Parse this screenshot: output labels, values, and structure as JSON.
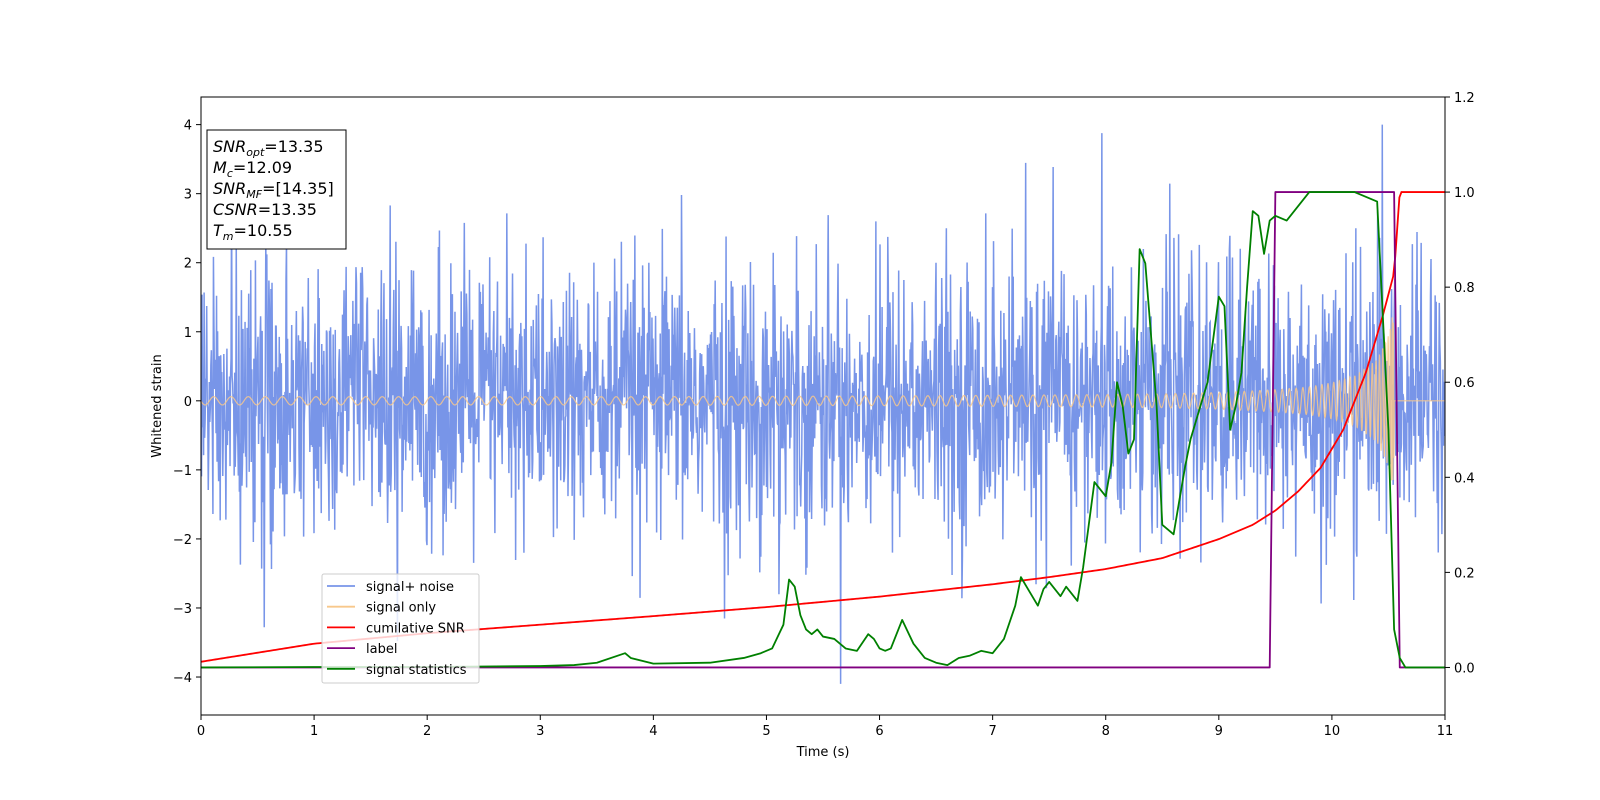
{
  "chart_data": {
    "type": "line",
    "xlabel": "Time (s)",
    "ylabel": "Whitened strain",
    "xlim": [
      0,
      11
    ],
    "ylim": [
      -4.55,
      4.4
    ],
    "y2lim": [
      -0.1,
      1.2
    ],
    "xticks": [
      "0",
      "1",
      "2",
      "3",
      "4",
      "5",
      "6",
      "7",
      "8",
      "9",
      "10",
      "11"
    ],
    "yticks": [
      "−4",
      "−3",
      "−2",
      "−1",
      "0",
      "1",
      "2",
      "3",
      "4"
    ],
    "y2ticks": [
      "0.0",
      "0.2",
      "0.4",
      "0.6",
      "0.8",
      "1.0",
      "1.2"
    ],
    "legend_position": "lower-left",
    "annotation": [
      {
        "sym": "SNR",
        "sub": "opt",
        "value": "=13.35"
      },
      {
        "sym": "M",
        "sub": "c",
        "value": "=12.09"
      },
      {
        "sym": "SNR",
        "sub": "MF",
        "value": "=[14.35]"
      },
      {
        "sym": "CSNR",
        "sub": "",
        "value": "=13.35"
      },
      {
        "sym": "T",
        "sub": "m",
        "value": "=10.55"
      }
    ],
    "series": [
      {
        "name": "signal+ noise",
        "color": "#7895e8",
        "axis": "left",
        "noise_std": 1.0,
        "min": -4.1,
        "max": 4.0,
        "x_range": [
          0,
          11
        ]
      },
      {
        "name": "signal only",
        "color": "#f8c88b",
        "axis": "left",
        "merger_time": 10.55,
        "amplitude_envelope": {
          "x": [
            0,
            2,
            4,
            6,
            7,
            8,
            8.5,
            9,
            9.5,
            9.8,
            10.0,
            10.2,
            10.4,
            10.5,
            10.55
          ],
          "y": [
            0.06,
            0.06,
            0.06,
            0.07,
            0.08,
            0.09,
            0.1,
            0.12,
            0.16,
            0.2,
            0.26,
            0.36,
            0.6,
            0.95,
            1.35
          ]
        }
      },
      {
        "name": "cumilative SNR",
        "color": "#ff0000",
        "axis": "right",
        "x": [
          0,
          1,
          2,
          3,
          4,
          5,
          6,
          7,
          7.5,
          8,
          8.5,
          9,
          9.3,
          9.5,
          9.7,
          9.9,
          10.1,
          10.3,
          10.45,
          10.55,
          10.6,
          11
        ],
        "y": [
          0.012,
          0.05,
          0.072,
          0.09,
          0.108,
          0.127,
          0.149,
          0.175,
          0.19,
          0.207,
          0.23,
          0.27,
          0.3,
          0.33,
          0.37,
          0.42,
          0.5,
          0.62,
          0.74,
          0.83,
          1.0,
          1.0
        ]
      },
      {
        "name": "label",
        "color": "#800080",
        "axis": "right",
        "x": [
          0,
          9.45,
          9.5,
          10.55,
          10.6,
          11
        ],
        "y": [
          0,
          0,
          1,
          1,
          0,
          0
        ]
      },
      {
        "name": "signal statistics",
        "color": "#008000",
        "axis": "right",
        "x": [
          0,
          1,
          2,
          3,
          3.3,
          3.5,
          3.75,
          3.8,
          4,
          4.5,
          4.8,
          4.95,
          5.05,
          5.15,
          5.2,
          5.25,
          5.3,
          5.35,
          5.4,
          5.45,
          5.5,
          5.6,
          5.7,
          5.8,
          5.9,
          5.95,
          6.0,
          6.05,
          6.1,
          6.2,
          6.3,
          6.4,
          6.5,
          6.6,
          6.7,
          6.8,
          6.9,
          7.0,
          7.1,
          7.2,
          7.25,
          7.3,
          7.4,
          7.45,
          7.5,
          7.6,
          7.65,
          7.7,
          7.75,
          7.8,
          7.85,
          7.9,
          8.0,
          8.05,
          8.1,
          8.15,
          8.2,
          8.25,
          8.3,
          8.35,
          8.4,
          8.45,
          8.5,
          8.6,
          8.7,
          8.75,
          8.8,
          8.9,
          9.0,
          9.05,
          9.1,
          9.15,
          9.2,
          9.25,
          9.3,
          9.35,
          9.4,
          9.45,
          9.5,
          9.6,
          9.7,
          9.8,
          9.9,
          10.0,
          10.2,
          10.4,
          10.5,
          10.55,
          10.6,
          10.65,
          10.75,
          11
        ],
        "y": [
          0,
          0.001,
          0.001,
          0.003,
          0.005,
          0.01,
          0.03,
          0.02,
          0.008,
          0.01,
          0.02,
          0.03,
          0.04,
          0.09,
          0.185,
          0.17,
          0.11,
          0.08,
          0.07,
          0.08,
          0.065,
          0.06,
          0.04,
          0.035,
          0.07,
          0.06,
          0.04,
          0.035,
          0.04,
          0.1,
          0.05,
          0.02,
          0.01,
          0.005,
          0.02,
          0.025,
          0.035,
          0.03,
          0.06,
          0.13,
          0.19,
          0.17,
          0.13,
          0.165,
          0.18,
          0.15,
          0.17,
          0.155,
          0.14,
          0.21,
          0.3,
          0.39,
          0.36,
          0.43,
          0.6,
          0.55,
          0.45,
          0.48,
          0.88,
          0.85,
          0.7,
          0.55,
          0.3,
          0.28,
          0.42,
          0.48,
          0.52,
          0.6,
          0.78,
          0.76,
          0.5,
          0.55,
          0.62,
          0.8,
          0.96,
          0.95,
          0.87,
          0.94,
          0.95,
          0.94,
          0.97,
          1.0,
          1.0,
          1.0,
          1.0,
          0.98,
          0.5,
          0.08,
          0.02,
          0.0,
          0.0,
          0.0
        ]
      }
    ]
  }
}
